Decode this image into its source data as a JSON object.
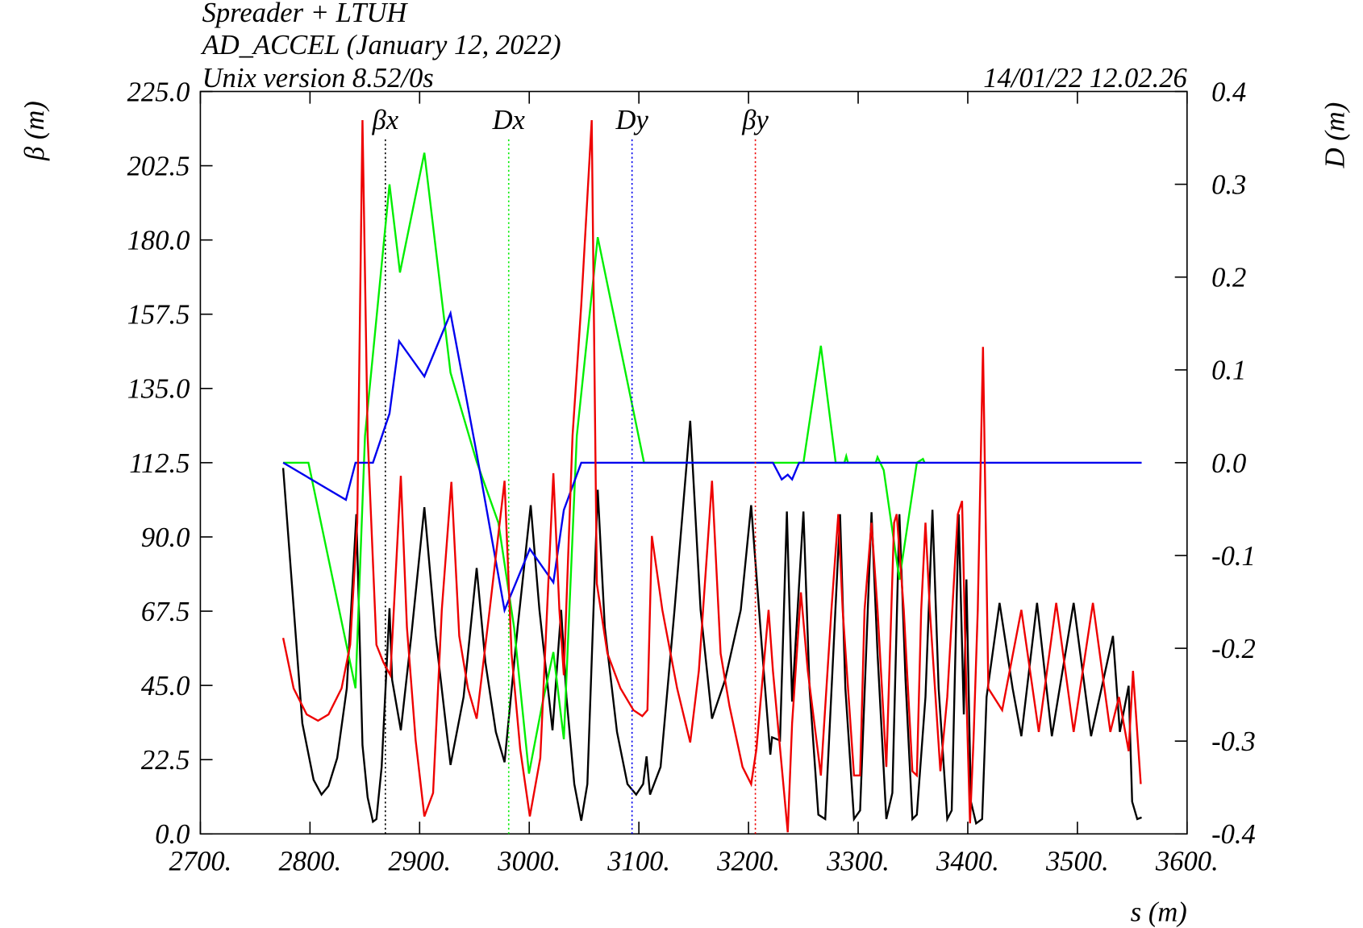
{
  "chart_data": {
    "type": "line",
    "title_lines": [
      "Spreader + LTUH",
      "AD_ACCEL (January 12, 2022)",
      "Unix version 8.52/0s"
    ],
    "timestamp": "14/01/22  12.02.26",
    "xlabel": "s (m)",
    "ylabel": "β (m)",
    "y2label": "D (m)",
    "xlim": [
      2700,
      3600
    ],
    "xticks": [
      {
        "value": 2700,
        "label": "2700."
      },
      {
        "value": 2800,
        "label": "2800."
      },
      {
        "value": 2900,
        "label": "2900."
      },
      {
        "value": 3000,
        "label": "3000."
      },
      {
        "value": 3100,
        "label": "3100."
      },
      {
        "value": 3200,
        "label": "3200."
      },
      {
        "value": 3300,
        "label": "3300."
      },
      {
        "value": 3400,
        "label": "3400."
      },
      {
        "value": 3500,
        "label": "3500."
      },
      {
        "value": 3600,
        "label": "3600."
      }
    ],
    "ylim": [
      0,
      225
    ],
    "yticks": [
      {
        "value": 0,
        "label": "0.0"
      },
      22.5,
      {
        "value": 45,
        "label": "45.0"
      },
      67.5,
      {
        "value": 90,
        "label": "90.0"
      },
      112.5,
      {
        "value": 135,
        "label": "135.0"
      },
      157.5,
      {
        "value": 180,
        "label": "180.0"
      },
      202.5,
      {
        "value": 225,
        "label": "225.0"
      }
    ],
    "y2lim": [
      -0.4,
      0.4
    ],
    "y2ticks": [
      -0.4,
      -0.3,
      -0.2,
      -0.1,
      {
        "value": 0,
        "label": "0.0"
      },
      0.1,
      0.2,
      0.3,
      0.4
    ],
    "series": [
      {
        "name": "βx",
        "color": "#000000",
        "axis": "y",
        "x": [
          2775.5,
          2783.5,
          2793,
          2803.3,
          2810.5,
          2816.9,
          2824.8,
          2833.6,
          2842.3,
          2847.9,
          2852.6,
          2857.4,
          2860.6,
          2865.4,
          2872.5,
          2874.9,
          2882.9,
          2892.4,
          2904.3,
          2914.7,
          2928.2,
          2940.1,
          2952,
          2960,
          2969.5,
          2977.5,
          2989.4,
          3001.3,
          3009.3,
          3021.2,
          3029.1,
          3033.9,
          3041.1,
          3047.4,
          3053,
          3062.5,
          3068.9,
          3080,
          3089.6,
          3097.5,
          3103.9,
          3107,
          3110.2,
          3119.8,
          3132.5,
          3146.8,
          3156.3,
          3166.7,
          3178.6,
          3192.9,
          3202.4,
          3212,
          3219.9,
          3221.5,
          3228.7,
          3235,
          3239.8,
          3250.1,
          3255.7,
          3263.7,
          3270,
          3283.5,
          3288.3,
          3296.2,
          3301.8,
          3312.2,
          3317.7,
          3325.7,
          3331.2,
          3337.6,
          3343.2,
          3349.5,
          3353.5,
          3361.4,
          3367.8,
          3373.4,
          3381.3,
          3385.3,
          3391.7,
          3396.4,
          3398.8,
          3402.8,
          3407.6,
          3413.1,
          3417.1,
          3429,
          3440.9,
          3448.9,
          3463.2,
          3476.7,
          3496.6,
          3512.5,
          3532.4,
          3538.7,
          3546.7,
          3549.9,
          3554.6,
          3558.6
        ],
        "values": [
          110.9,
          75.8,
          33.5,
          16.4,
          11.9,
          14.5,
          23,
          44.1,
          96.9,
          26.9,
          11.1,
          3.7,
          4.5,
          20.3,
          68.4,
          46.7,
          31.4,
          60,
          99,
          60,
          20.9,
          41.5,
          80.6,
          52,
          30.9,
          21.7,
          62.6,
          99.6,
          67.9,
          31.4,
          67.9,
          41.5,
          15.1,
          4,
          15.1,
          104.3,
          62.6,
          30.9,
          15.1,
          11.9,
          15.1,
          23.5,
          11.9,
          20.3,
          67.9,
          125.2,
          67.9,
          34.9,
          46.7,
          67.9,
          99.6,
          57.3,
          24,
          29.3,
          28.3,
          97.7,
          40.1,
          97.7,
          44.1,
          5.8,
          4.5,
          96.9,
          44.1,
          4.5,
          7.1,
          97.5,
          54.7,
          4.5,
          12.4,
          96.9,
          46.7,
          4.5,
          5.8,
          41.5,
          98.2,
          44.1,
          4.5,
          7.1,
          96.9,
          36.2,
          77.1,
          9.8,
          3.2,
          4.5,
          41.5,
          70,
          44.1,
          29.6,
          70,
          29.6,
          70,
          29.6,
          60,
          30.9,
          44.9,
          9.8,
          4.5,
          5
        ]
      },
      {
        "name": "Dx",
        "color": "#00ee00",
        "axis": "y2",
        "x": [
          2775.5,
          2798.6,
          2841.5,
          2850.2,
          2872.5,
          2882.1,
          2904.3,
          2928.2,
          2952,
          2971.9,
          2986.2,
          2999.7,
          3011.6,
          3022,
          3031.5,
          3043.4,
          3062.5,
          3104.7,
          3234.2,
          3250.1,
          3266,
          3279.5,
          3287.5,
          3289.1,
          3290.7,
          3316.1,
          3317.7,
          3323.3,
          3337.6,
          3353.5,
          3359.1,
          3360.6
        ],
        "values": [
          0,
          0,
          -0.243,
          0.029,
          0.3,
          0.205,
          0.334,
          0.097,
          0.001,
          -0.065,
          -0.178,
          -0.335,
          -0.262,
          -0.204,
          -0.298,
          0.029,
          0.243,
          0,
          0,
          0,
          0.126,
          0,
          0,
          0.007,
          0,
          0,
          0.006,
          -0.008,
          -0.126,
          0,
          0.004,
          0
        ]
      },
      {
        "name": "Dy",
        "color": "#0000ee",
        "axis": "y2",
        "x": [
          2775.5,
          2832.8,
          2841.5,
          2857.4,
          2872.5,
          2881.3,
          2904.3,
          2928.2,
          2952,
          2977.5,
          3000.5,
          3022,
          3031.5,
          3047.4,
          3222.3,
          3230.3,
          3235.8,
          3239.8,
          3246.1,
          3558.6
        ],
        "values": [
          0,
          -0.04,
          0,
          0,
          0.053,
          0.131,
          0.093,
          0.161,
          0.01,
          -0.159,
          -0.093,
          -0.129,
          -0.051,
          0,
          0,
          -0.018,
          -0.013,
          -0.018,
          0,
          0
        ]
      },
      {
        "name": "βy",
        "color": "#ee0000",
        "axis": "y",
        "x": [
          2775.5,
          2785.1,
          2797,
          2807.3,
          2816.9,
          2828.8,
          2836.7,
          2843.1,
          2847.9,
          2852.6,
          2860.6,
          2867,
          2873.3,
          2882.9,
          2888.4,
          2896.4,
          2904.3,
          2912.3,
          2920.2,
          2929,
          2936.1,
          2944.1,
          2952,
          2963.9,
          2977.5,
          2983.8,
          2991.8,
          3000.5,
          3010.1,
          3022,
          3027.5,
          3031.5,
          3039.5,
          3047.4,
          3057,
          3061.7,
          3071.3,
          3083.2,
          3095.1,
          3103.1,
          3107.8,
          3111.8,
          3121.4,
          3134.9,
          3146.8,
          3154.7,
          3166.7,
          3174.6,
          3182.6,
          3194.5,
          3202.4,
          3207.2,
          3218.3,
          3222.3,
          3228.7,
          3235.8,
          3239.8,
          3247.8,
          3254.1,
          3266,
          3275.6,
          3281.9,
          3285.9,
          3296.2,
          3301.8,
          3305.8,
          3312.2,
          3317.7,
          3325.7,
          3332.8,
          3335.2,
          3341.6,
          3349.5,
          3353.5,
          3357.5,
          3361.4,
          3365.4,
          3375,
          3381.3,
          3390.9,
          3394.8,
          3398.8,
          3402,
          3405.2,
          3409.1,
          3413.9,
          3418.7,
          3431.4,
          3448.9,
          3464.8,
          3480.7,
          3496.6,
          3514.1,
          3530,
          3537.9,
          3546.7,
          3550.7,
          3557.8
        ],
        "values": [
          59.4,
          44.1,
          36.2,
          34.3,
          36.2,
          44.1,
          57.3,
          94.3,
          216.3,
          120.7,
          57.3,
          52,
          48.1,
          108.5,
          62.6,
          28.3,
          5.3,
          12.4,
          67.9,
          106.7,
          60,
          44.1,
          34.9,
          67.9,
          107,
          54.7,
          25.6,
          5.3,
          23,
          109.3,
          67.9,
          48.1,
          120.7,
          160.3,
          216.3,
          75.8,
          54.7,
          44.1,
          37.5,
          35.7,
          37.5,
          90.3,
          67.9,
          44.1,
          27.7,
          49.4,
          107,
          54.7,
          38.8,
          20.3,
          15.1,
          25.6,
          67.9,
          49.4,
          26.1,
          0.5,
          33.5,
          73.2,
          49.4,
          17.7,
          67.9,
          96.9,
          67.9,
          17.7,
          17.7,
          67.9,
          94.3,
          67.9,
          20.3,
          94.3,
          96.9,
          67.9,
          19,
          17.7,
          67.9,
          94.3,
          67.9,
          19,
          41.5,
          96.9,
          100.9,
          41.5,
          3.2,
          28.3,
          67.9,
          147.6,
          44.1,
          37.5,
          67.9,
          30.9,
          70,
          30.9,
          70,
          30.9,
          41.5,
          25.1,
          49.4,
          15.1
        ]
      }
    ]
  }
}
